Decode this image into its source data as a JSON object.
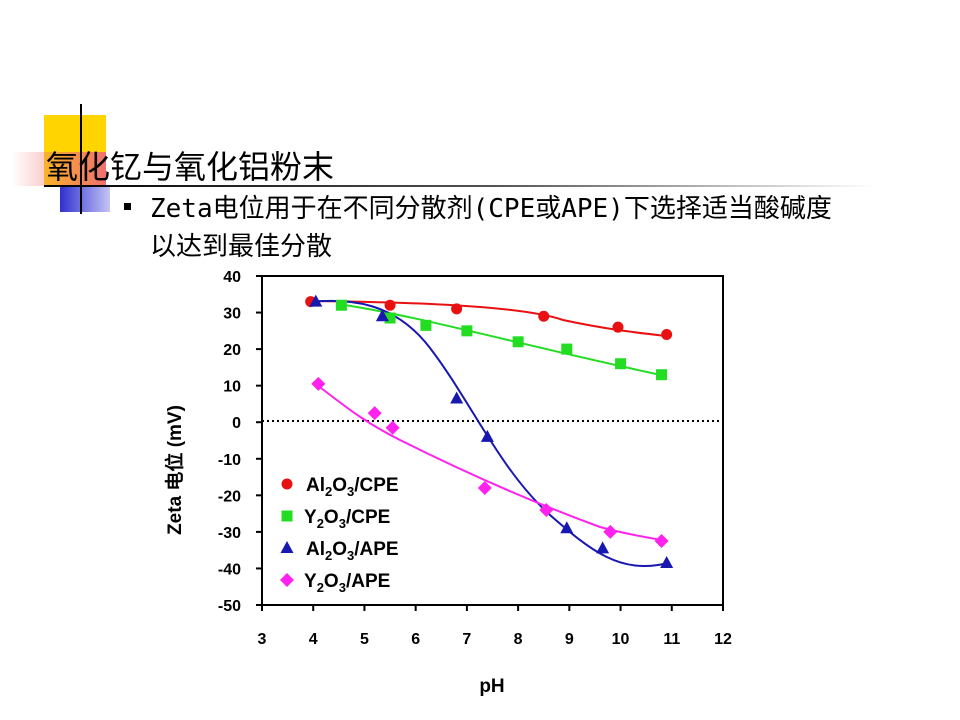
{
  "slide": {
    "title": "氧化钇与氧化铝粉末",
    "bullet": "Zeta电位用于在不同分散剂(CPE或APE)下选择适当酸碱度以达到最佳分散"
  },
  "chart_data": {
    "type": "scatter",
    "xlabel": "pH",
    "ylabel": "Zeta 电位 (mV)",
    "xlim": [
      3,
      12
    ],
    "ylim": [
      -50,
      40
    ],
    "xticks": [
      3,
      4,
      5,
      6,
      7,
      8,
      9,
      10,
      11,
      12
    ],
    "yticks": [
      40,
      30,
      20,
      10,
      0,
      -10,
      -20,
      -30,
      -40,
      -50
    ],
    "zero_line": "dotted",
    "grid": false,
    "legend_position": "lower-left",
    "series": [
      {
        "name": "Al2O3/CPE",
        "legend": {
          "base": "Al",
          "s1": "2",
          "mid": "O",
          "s2": "3",
          "rest": "/CPE"
        },
        "color": "#e81010",
        "marker": "circle",
        "x": [
          3.95,
          5.5,
          6.8,
          8.5,
          9.95,
          10.9
        ],
        "y": [
          33,
          32,
          31,
          29,
          26,
          24
        ]
      },
      {
        "name": "Y2O3/CPE",
        "legend": {
          "base": "Y",
          "s1": "2",
          "mid": "O",
          "s2": "3",
          "rest": "/CPE"
        },
        "color": "#22dd22",
        "marker": "square",
        "x": [
          4.55,
          5.5,
          6.2,
          7.0,
          8.0,
          8.95,
          10.0,
          10.8
        ],
        "y": [
          32,
          28.5,
          26.5,
          25,
          22,
          20,
          16,
          13
        ]
      },
      {
        "name": "Al2O3/APE",
        "legend": {
          "base": "Al",
          "s1": "2",
          "mid": "O",
          "s2": "3",
          "rest": "/APE"
        },
        "color": "#1818b0",
        "marker": "triangle",
        "x": [
          4.05,
          5.35,
          6.8,
          7.4,
          8.95,
          9.65,
          10.9
        ],
        "y": [
          33,
          29,
          6.5,
          -4,
          -29,
          -34.5,
          -38.5
        ]
      },
      {
        "name": "Y2O3/APE",
        "legend": {
          "base": "Y",
          "s1": "2",
          "mid": "O",
          "s2": "3",
          "rest": "/APE"
        },
        "color": "#ff22ee",
        "marker": "diamond",
        "x": [
          4.1,
          5.2,
          5.55,
          7.35,
          8.55,
          9.8,
          10.8
        ],
        "y": [
          10.5,
          2.5,
          -1.5,
          -18,
          -24,
          -30,
          -32.5
        ]
      }
    ]
  }
}
